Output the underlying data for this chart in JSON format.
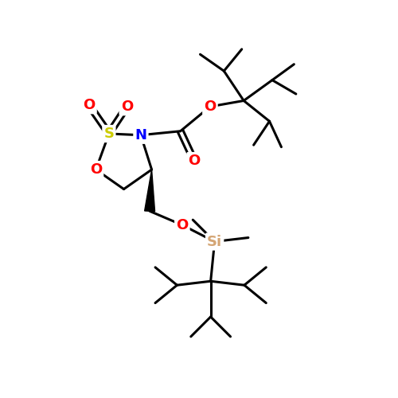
{
  "bg_color": "#ffffff",
  "atom_colors": {
    "O": "#ff0000",
    "N": "#0000ff",
    "S": "#cccc00",
    "Si": "#d4a574",
    "C": "#000000"
  },
  "bond_color": "#000000",
  "bond_width": 2.2,
  "font_size_atom": 13,
  "figsize": [
    5,
    5
  ],
  "dpi": 100
}
